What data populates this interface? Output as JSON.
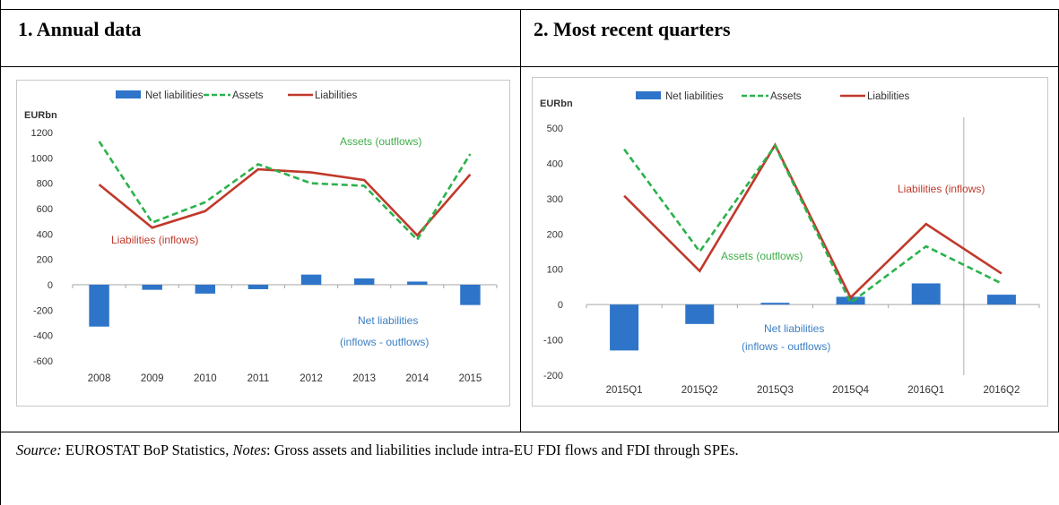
{
  "panels": [
    {
      "title": "1. Annual data"
    },
    {
      "title": "2. Most recent quarters"
    }
  ],
  "source": {
    "source_label": "Source:",
    "source_text": " EUROSTAT BoP Statistics, ",
    "notes_label": "Notes",
    "notes_text": ": Gross assets and liabilities include intra-EU FDI flows and FDI through SPEs."
  },
  "colors": {
    "net": "#2e75c9",
    "assets": "#2bb24c",
    "liabilities": "#c0392b",
    "assets_text": "#3fae49",
    "liabilities_text": "#c0392b",
    "net_text": "#3b7fc4"
  },
  "chart_data": [
    {
      "type": "bar",
      "ylabel": "EURbn",
      "ylim": [
        -600,
        1200
      ],
      "yticks": [
        -600,
        -400,
        -200,
        0,
        200,
        400,
        600,
        800,
        1000,
        1200
      ],
      "categories": [
        "2008",
        "2009",
        "2010",
        "2011",
        "2012",
        "2013",
        "2014",
        "2015"
      ],
      "legend": [
        "Net liabilities",
        "Assets",
        "Liabilities"
      ],
      "series": [
        {
          "name": "Net liabilities",
          "kind": "bar",
          "values": [
            -330,
            -40,
            -70,
            -35,
            80,
            50,
            25,
            -160
          ]
        },
        {
          "name": "Assets",
          "kind": "line-dashed",
          "values": [
            1130,
            490,
            650,
            950,
            800,
            780,
            355,
            1030
          ]
        },
        {
          "name": "Liabilities",
          "kind": "line",
          "values": [
            790,
            450,
            580,
            910,
            885,
            825,
            390,
            870
          ]
        }
      ],
      "annotations": [
        {
          "text": "Assets (outflows)",
          "series": "assets"
        },
        {
          "text": "Liabilities (inflows)",
          "series": "liabilities"
        },
        {
          "text": "Net liabilities",
          "series": "net"
        },
        {
          "text": "(inflows - outflows)",
          "series": "net"
        }
      ]
    },
    {
      "type": "bar",
      "ylabel": "EURbn",
      "ylim": [
        -200,
        500
      ],
      "yticks": [
        -200,
        -100,
        0,
        100,
        200,
        300,
        400,
        500
      ],
      "categories": [
        "2015Q1",
        "2015Q2",
        "2015Q3",
        "2015Q4",
        "2016Q1",
        "2016Q2"
      ],
      "legend": [
        "Net liabilities",
        "Assets",
        "Liabilities"
      ],
      "series": [
        {
          "name": "Net liabilities",
          "kind": "bar",
          "values": [
            -130,
            -55,
            5,
            22,
            60,
            28
          ]
        },
        {
          "name": "Assets",
          "kind": "line-dashed",
          "values": [
            440,
            150,
            450,
            5,
            165,
            60
          ]
        },
        {
          "name": "Liabilities",
          "kind": "line",
          "values": [
            308,
            95,
            452,
            20,
            228,
            88
          ]
        }
      ],
      "annotations": [
        {
          "text": "Liabilities (inflows)",
          "series": "liabilities"
        },
        {
          "text": "Assets (outflows)",
          "series": "assets"
        },
        {
          "text": "Net liabilities",
          "series": "net"
        },
        {
          "text": "(inflows - outflows)",
          "series": "net"
        }
      ]
    }
  ]
}
